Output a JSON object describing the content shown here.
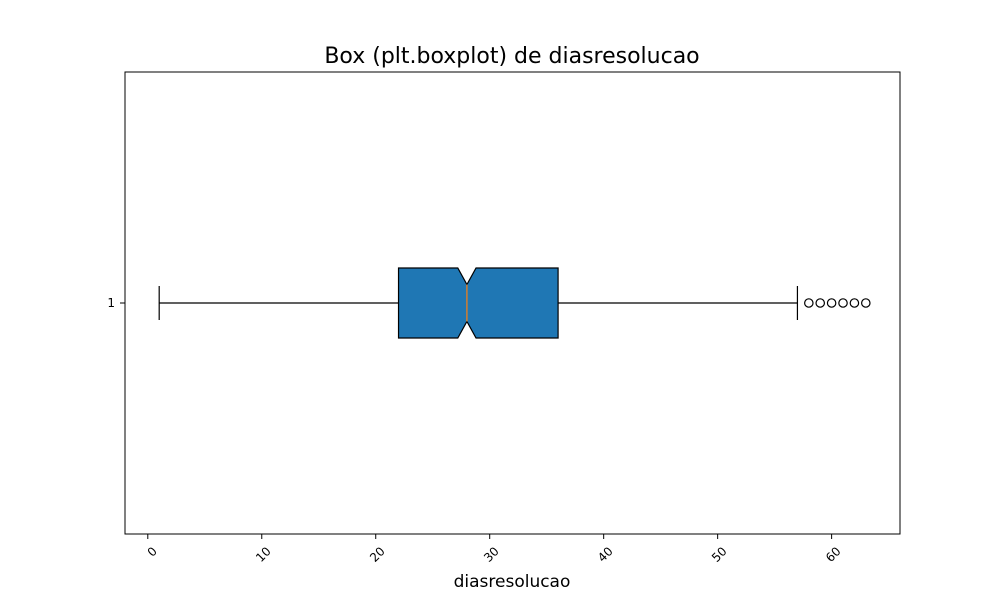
{
  "chart_data": {
    "type": "box",
    "title": "Box (plt.boxplot) de diasresolucao",
    "xlabel": "diasresolucao",
    "ylabel": "",
    "orientation": "horizontal",
    "notched": true,
    "xlim": [
      -2,
      66
    ],
    "xticks": [
      0,
      10,
      20,
      30,
      40,
      50,
      60
    ],
    "xtick_labels": [
      "0",
      "10",
      "20",
      "30",
      "40",
      "50",
      "60"
    ],
    "ytick_labels": [
      "1"
    ],
    "boxes": [
      {
        "label": "1",
        "whisker_low": 1,
        "q1": 22,
        "median": 28,
        "q3": 36,
        "whisker_high": 57,
        "notch_low": 27.2,
        "notch_high": 28.8,
        "outliers": [
          58,
          59,
          60,
          61,
          62,
          63
        ]
      }
    ],
    "colors": {
      "box_fill": "#1f77b4",
      "median": "#ff7f0e",
      "lines": "#000000"
    },
    "grid": false
  }
}
